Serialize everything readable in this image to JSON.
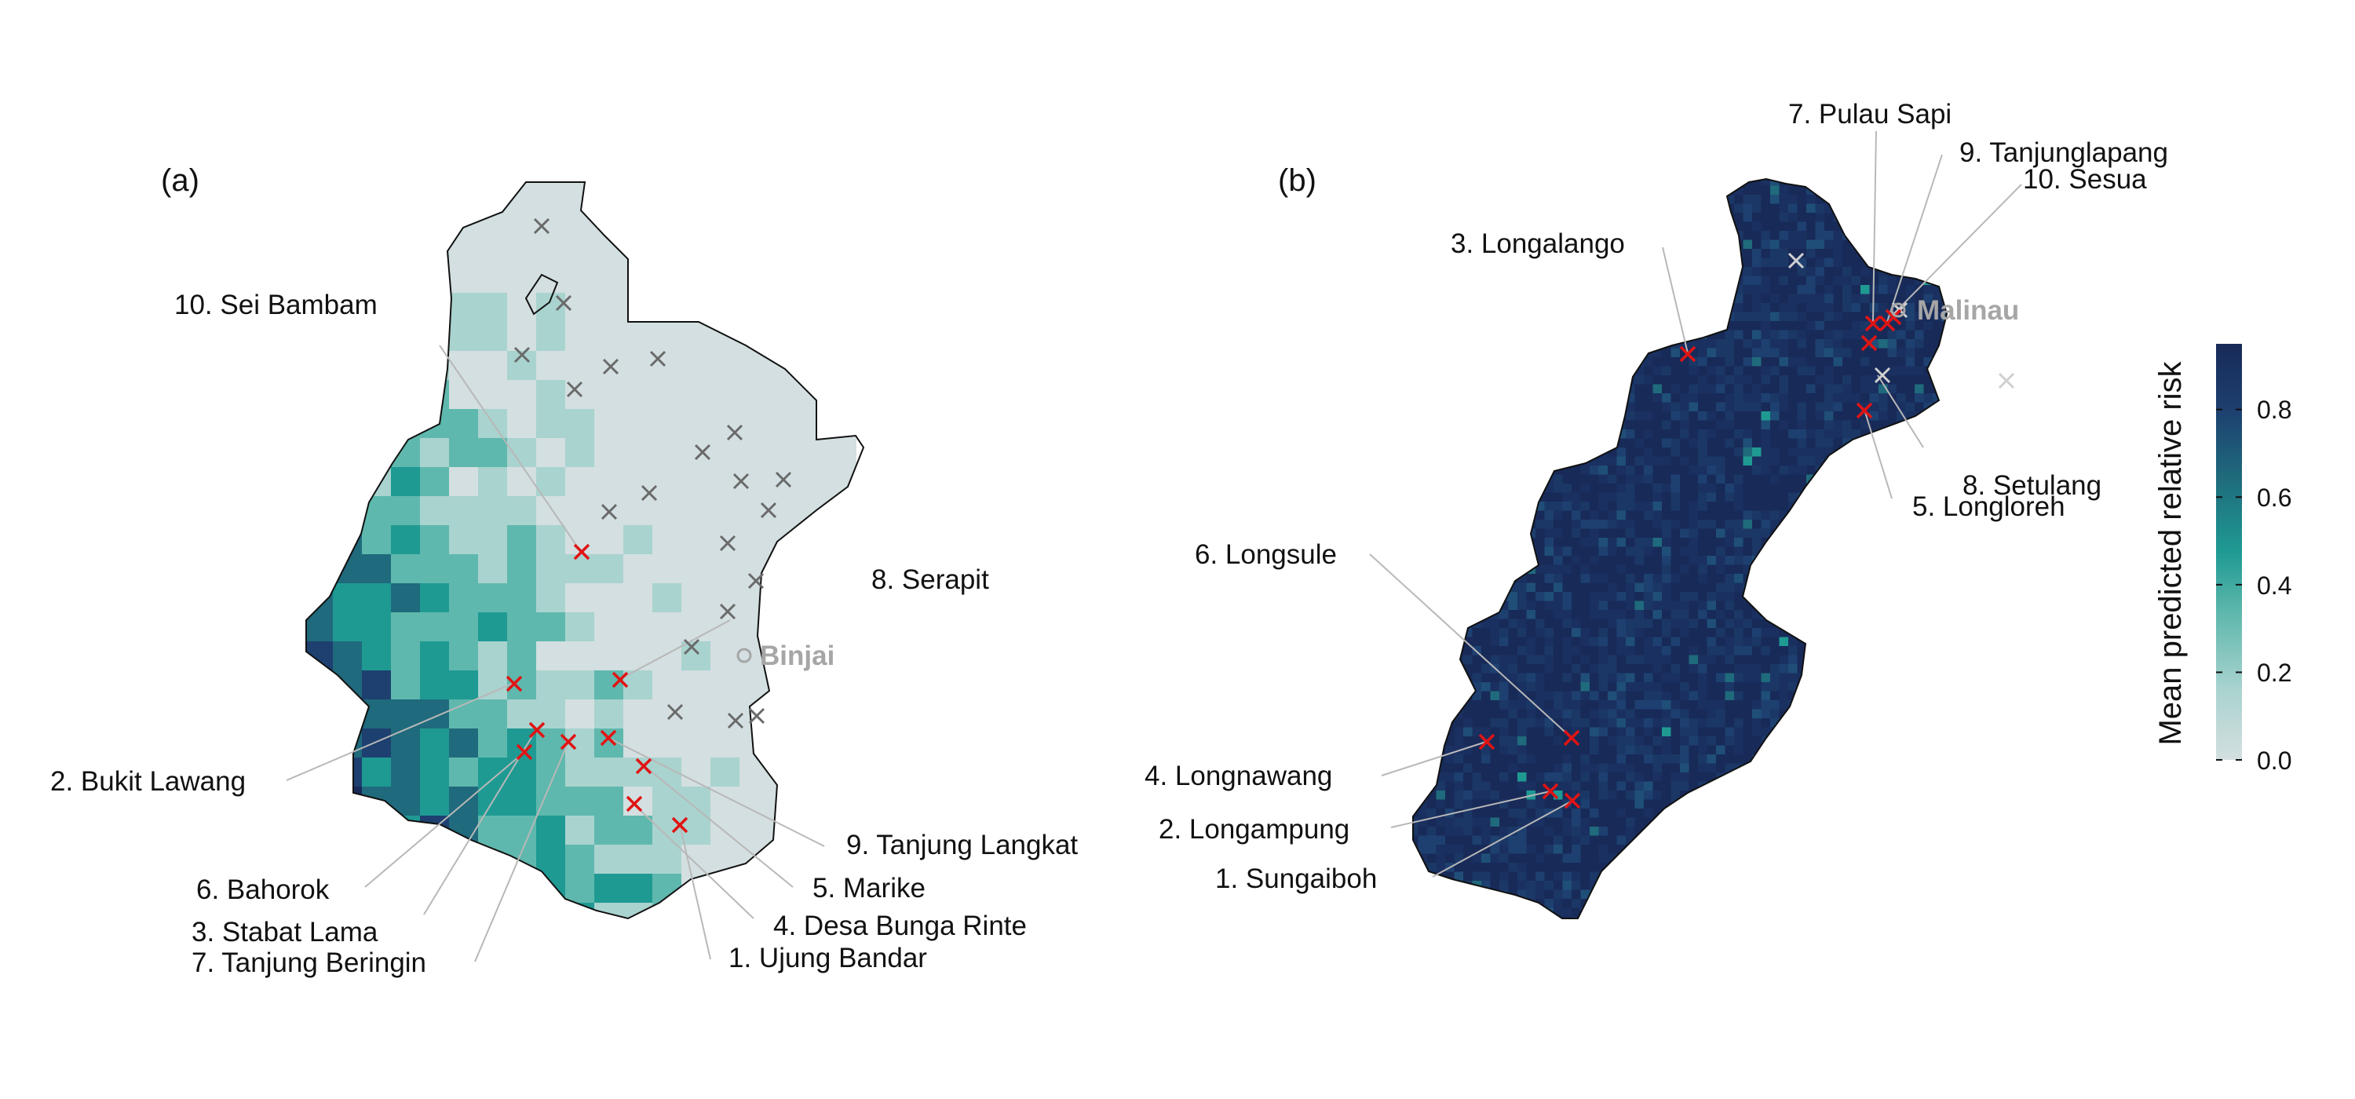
{
  "colors": {
    "background": "#ffffff",
    "ramp": [
      "#d3dfe0",
      "#a9d3cf",
      "#5fb8ad",
      "#1f9a93",
      "#1f6a7c",
      "#1d4070",
      "#182a58"
    ],
    "highlighted_site": "#e01414",
    "other_site_a": "#6a6a6a",
    "other_site_b": "#d0d0d0",
    "leader_line": "#b8b8b8",
    "town_label": "#a6a6a6",
    "outline": "#111111"
  },
  "icons": {
    "highlighted_site": "red-cross-marker-icon",
    "other_site": "grey-cross-marker-icon",
    "town": "open-circle-marker-icon"
  },
  "panels": [
    {
      "label": "(a)",
      "town": "Binjai",
      "sites": [
        "1. Ujung Bandar",
        "2. Bukit Lawang",
        "3. Stabat Lama",
        "4. Desa Bunga Rinte",
        "5. Marike",
        "6. Bahorok",
        "7. Tanjung Beringin",
        "8. Serapit",
        "9. Tanjung Langkat",
        "10. Sei Bambam"
      ]
    },
    {
      "label": "(b)",
      "town": "Malinau",
      "sites": [
        "1. Sungaiboh",
        "2. Longampung",
        "3. Longalango",
        "4. Longnawang",
        "5. Longloreh",
        "6. Longsule",
        "7. Pulau Sapi",
        "8. Setulang",
        "9. Tanjunglapang",
        "10. Sesua"
      ]
    }
  ],
  "legend": {
    "title": "Mean predicted relative risk",
    "range": [
      0,
      0.95
    ],
    "ticks": [
      "0.0",
      "0.2",
      "0.4",
      "0.6",
      "0.8"
    ]
  }
}
